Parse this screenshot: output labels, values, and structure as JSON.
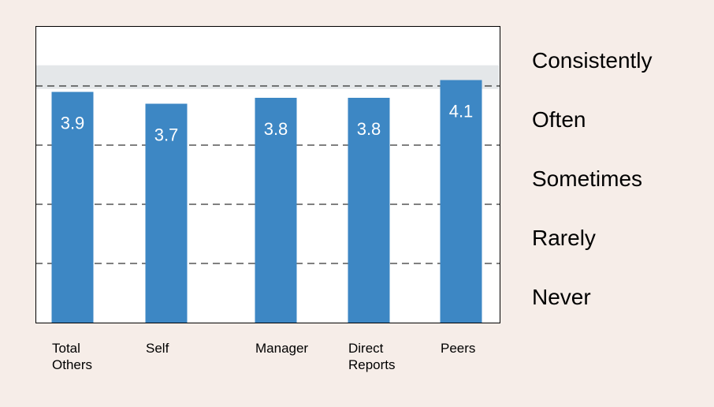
{
  "chart_data": {
    "type": "bar",
    "categories": [
      [
        "Total",
        "Others"
      ],
      [
        "Self"
      ],
      [
        "Manager"
      ],
      [
        "Direct",
        "Reports"
      ],
      [
        "Peers"
      ]
    ],
    "values": [
      3.9,
      3.7,
      3.8,
      3.8,
      4.1
    ],
    "value_labels": [
      "3.9",
      "3.7",
      "3.8",
      "3.8",
      "4.1"
    ],
    "ylim": [
      0,
      5
    ],
    "scale_labels": [
      "Consistently",
      "Often",
      "Sometimes",
      "Rarely",
      "Never"
    ],
    "scale_values": [
      5,
      4,
      3,
      2,
      1
    ],
    "gridlines": [
      1,
      2,
      3,
      4
    ],
    "highlight_band": [
      3.95,
      4.35
    ],
    "colors": {
      "bar": "#3d87c4",
      "band": "#e4e7e9",
      "background": "#f6ede8",
      "plot": "#ffffff"
    }
  }
}
